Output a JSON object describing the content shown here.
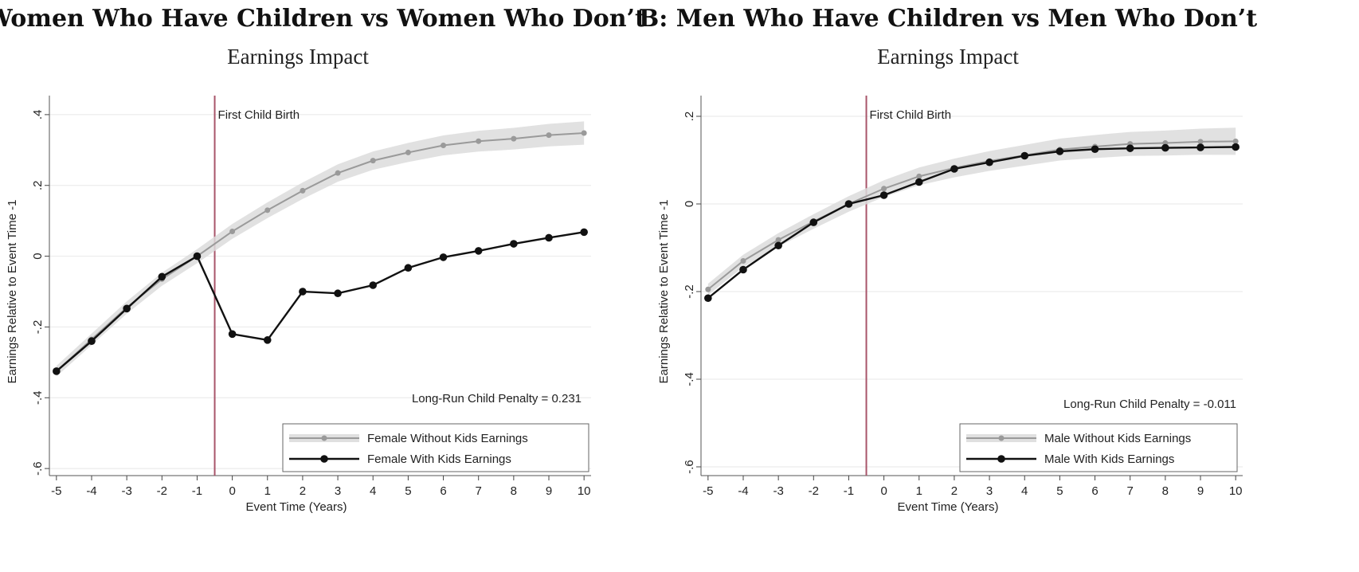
{
  "chart_data": [
    {
      "type": "line",
      "title": "A: Women Who Have Children vs Women Who Don’t",
      "subtitle": "Earnings Impact",
      "xlabel": "Event Time (Years)",
      "ylabel": "Earnings Relative to Event Time -1",
      "x": [
        -5,
        -4,
        -3,
        -2,
        -1,
        0,
        1,
        2,
        3,
        4,
        5,
        6,
        7,
        8,
        9,
        10
      ],
      "xticks": [
        "-5",
        "-4",
        "-3",
        "-2",
        "-1",
        "0",
        "1",
        "2",
        "3",
        "4",
        "5",
        "6",
        "7",
        "8",
        "9",
        "10"
      ],
      "yticks": [
        {
          "value": 0.4,
          "label": ".4"
        },
        {
          "value": 0.2,
          "label": ".2"
        },
        {
          "value": 0,
          "label": "0"
        },
        {
          "value": -0.2,
          "label": "-.2"
        },
        {
          "value": -0.4,
          "label": "-.4"
        },
        {
          "value": -0.6,
          "label": "-.6"
        }
      ],
      "ylim": [
        -0.62,
        0.42
      ],
      "xlim": [
        -5.2,
        10.2
      ],
      "grid": true,
      "event_line": {
        "x": -0.5,
        "label": "First Child Birth"
      },
      "annotation": "Long-Run Child Penalty = 0.231",
      "legend_position": "bottom-right",
      "series": [
        {
          "name": "Female Without Kids Earnings",
          "color": "#9a9a9a",
          "band": 0.015,
          "values": [
            -0.325,
            -0.235,
            -0.145,
            -0.065,
            0.0,
            0.07,
            0.13,
            0.185,
            0.235,
            0.27,
            0.293,
            0.313,
            0.325,
            0.332,
            0.342,
            0.348
          ]
        },
        {
          "name": "Female With Kids Earnings",
          "color": "#111111",
          "band": 0,
          "values": [
            -0.325,
            -0.24,
            -0.148,
            -0.058,
            0.0,
            -0.22,
            -0.237,
            -0.1,
            -0.105,
            -0.082,
            -0.033,
            -0.003,
            0.015,
            0.035,
            0.052,
            0.068
          ]
        }
      ]
    },
    {
      "type": "line",
      "title": "B: Men Who Have Children vs Men Who Don’t",
      "subtitle": "Earnings Impact",
      "xlabel": "Event Time (Years)",
      "ylabel": "Earnings Relative to Event Time -1",
      "x": [
        -5,
        -4,
        -3,
        -2,
        -1,
        0,
        1,
        2,
        3,
        4,
        5,
        6,
        7,
        8,
        9,
        10
      ],
      "xticks": [
        "-5",
        "-4",
        "-3",
        "-2",
        "-1",
        "0",
        "1",
        "2",
        "3",
        "4",
        "5",
        "6",
        "7",
        "8",
        "9",
        "10"
      ],
      "yticks": [
        {
          "value": 0.2,
          "label": ".2"
        },
        {
          "value": 0,
          "label": "0"
        },
        {
          "value": -0.2,
          "label": "-.2"
        },
        {
          "value": -0.4,
          "label": "-.4"
        },
        {
          "value": -0.6,
          "label": "-.6"
        }
      ],
      "ylim": [
        -0.62,
        0.22
      ],
      "xlim": [
        -5.2,
        10.2
      ],
      "grid": true,
      "event_line": {
        "x": -0.5,
        "label": "First Child Birth"
      },
      "annotation": "Long-Run Child Penalty = -0.011",
      "legend_position": "bottom-right",
      "series": [
        {
          "name": "Male Without Kids Earnings",
          "color": "#9a9a9a",
          "band": 0.013,
          "values": [
            -0.195,
            -0.13,
            -0.082,
            -0.04,
            0.0,
            0.035,
            0.063,
            0.082,
            0.098,
            0.111,
            0.124,
            0.131,
            0.137,
            0.139,
            0.142,
            0.143
          ]
        },
        {
          "name": "Male With Kids Earnings",
          "color": "#111111",
          "band": 0,
          "values": [
            -0.215,
            -0.15,
            -0.095,
            -0.042,
            0.0,
            0.02,
            0.05,
            0.08,
            0.095,
            0.11,
            0.12,
            0.125,
            0.127,
            0.128,
            0.129,
            0.13
          ]
        }
      ]
    }
  ]
}
